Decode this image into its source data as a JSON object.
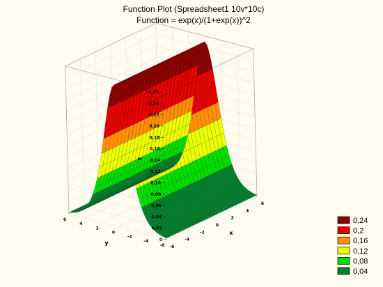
{
  "chart_data": {
    "type": "surface3d",
    "title": "Function Plot (Spreadsheet1 10v*10c)",
    "subtitle": "Function = exp(x)/(1+exp(x))^2",
    "xlabel": "x",
    "ylabel": "y",
    "zlabel": "z",
    "xlim": [
      -6,
      6
    ],
    "ylim": [
      -6,
      6
    ],
    "zlim": [
      0,
      0.26
    ],
    "x_ticks": [
      "-6",
      "-4",
      "-2",
      "0",
      "2",
      "4",
      "6"
    ],
    "y_ticks": [
      "-6",
      "-4",
      "-2",
      "0",
      "2",
      "4",
      "6"
    ],
    "z_ticks": [
      "0",
      "0,02",
      "0,04",
      "0,06",
      "0,08",
      "0,10",
      "0,12",
      "0,14",
      "0,16",
      "0,18",
      "0,20",
      "0,22",
      "0,24",
      "0,26"
    ],
    "legend": [
      {
        "label": "0,24",
        "color": "#8b0000"
      },
      {
        "label": "0,2",
        "color": "#e40000"
      },
      {
        "label": "0,16",
        "color": "#ff9000"
      },
      {
        "label": "0,12",
        "color": "#eaff00"
      },
      {
        "label": "0,08",
        "color": "#00dd00"
      },
      {
        "label": "0,04",
        "color": "#00802c"
      }
    ],
    "legend_position": "bottom-right",
    "grid": true
  }
}
